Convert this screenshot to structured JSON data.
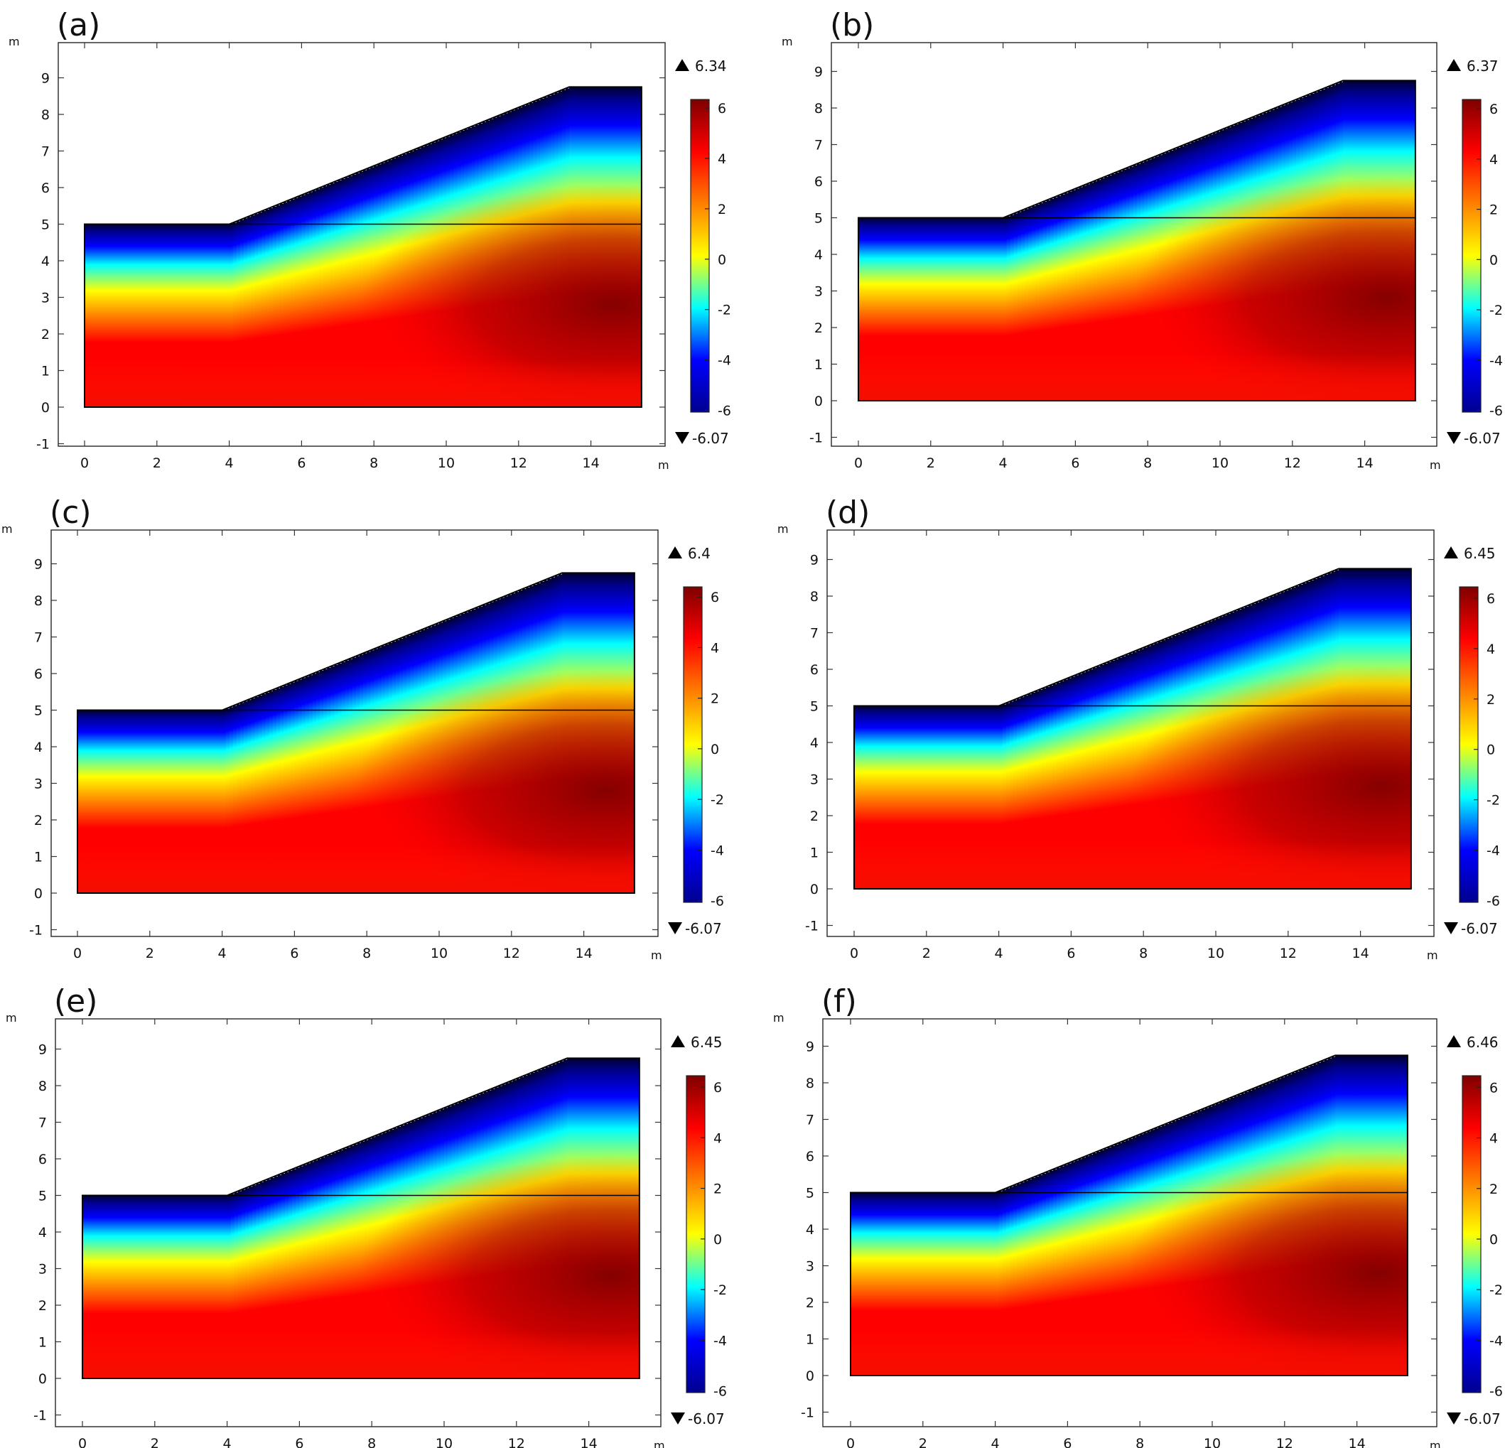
{
  "figure": {
    "panel_labels": [
      "(a)",
      "(b)",
      "(c)",
      "(d)",
      "(e)",
      "(f)"
    ]
  },
  "chart_data": [
    {
      "panel": "(a)",
      "type": "heatmap",
      "xlabel": "m",
      "ylabel": "m",
      "xlim": [
        -0.4,
        16
      ],
      "ylim": [
        -1.1,
        9.9
      ],
      "xticks": [
        0,
        2,
        4,
        6,
        8,
        10,
        12,
        14
      ],
      "yticks": [
        -1,
        0,
        1,
        2,
        3,
        4,
        5,
        6,
        7,
        8,
        9
      ],
      "geometry_outline_m": [
        [
          0,
          0
        ],
        [
          0,
          5
        ],
        [
          4,
          5
        ],
        [
          13.4,
          8.75
        ],
        [
          15.4,
          8.75
        ],
        [
          15.4,
          0
        ]
      ],
      "interface_line_y_m": 5,
      "colorbar": {
        "ticks": [
          6,
          4,
          2,
          0,
          -2,
          -4,
          -6
        ],
        "max_label": "6.34",
        "min_label": "-6.07",
        "max": 6.34,
        "min": -6.07
      },
      "colormap": [
        "#00008f",
        "#0000ff",
        "#00ffff",
        "#ffff00",
        "#ff7f00",
        "#ff0000",
        "#7f0000"
      ]
    },
    {
      "panel": "(b)",
      "type": "heatmap",
      "xlabel": "m",
      "ylabel": "m",
      "xlim": [
        -0.4,
        16
      ],
      "ylim": [
        -1.1,
        9.9
      ],
      "xticks": [
        0,
        2,
        4,
        6,
        8,
        10,
        12,
        14
      ],
      "yticks": [
        -1,
        0,
        1,
        2,
        3,
        4,
        5,
        6,
        7,
        8,
        9
      ],
      "geometry_outline_m": [
        [
          0,
          0
        ],
        [
          0,
          5
        ],
        [
          4,
          5
        ],
        [
          13.4,
          8.75
        ],
        [
          15.4,
          8.75
        ],
        [
          15.4,
          0
        ]
      ],
      "interface_line_y_m": 5,
      "colorbar": {
        "ticks": [
          6,
          4,
          2,
          0,
          -2,
          -4,
          -6
        ],
        "max_label": "6.37",
        "min_label": "-6.07",
        "max": 6.37,
        "min": -6.07
      },
      "colormap": [
        "#00008f",
        "#0000ff",
        "#00ffff",
        "#ffff00",
        "#ff7f00",
        "#ff0000",
        "#7f0000"
      ]
    },
    {
      "panel": "(c)",
      "type": "heatmap",
      "xlabel": "m",
      "ylabel": "m",
      "xlim": [
        -0.4,
        16
      ],
      "ylim": [
        -1.1,
        9.9
      ],
      "xticks": [
        0,
        2,
        4,
        6,
        8,
        10,
        12,
        14
      ],
      "yticks": [
        -1,
        0,
        1,
        2,
        3,
        4,
        5,
        6,
        7,
        8,
        9
      ],
      "geometry_outline_m": [
        [
          0,
          0
        ],
        [
          0,
          5
        ],
        [
          4,
          5
        ],
        [
          13.4,
          8.75
        ],
        [
          15.4,
          8.75
        ],
        [
          15.4,
          0
        ]
      ],
      "interface_line_y_m": 5,
      "colorbar": {
        "ticks": [
          6,
          4,
          2,
          0,
          -2,
          -4,
          -6
        ],
        "max_label": "6.4",
        "min_label": "-6.07",
        "max": 6.4,
        "min": -6.07
      },
      "colormap": [
        "#00008f",
        "#0000ff",
        "#00ffff",
        "#ffff00",
        "#ff7f00",
        "#ff0000",
        "#7f0000"
      ]
    },
    {
      "panel": "(d)",
      "type": "heatmap",
      "xlabel": "m",
      "ylabel": "m",
      "xlim": [
        -0.4,
        16
      ],
      "ylim": [
        -1.1,
        9.9
      ],
      "xticks": [
        0,
        2,
        4,
        6,
        8,
        10,
        12,
        14
      ],
      "yticks": [
        -1,
        0,
        1,
        2,
        3,
        4,
        5,
        6,
        7,
        8,
        9
      ],
      "geometry_outline_m": [
        [
          0,
          0
        ],
        [
          0,
          5
        ],
        [
          4,
          5
        ],
        [
          13.4,
          8.75
        ],
        [
          15.4,
          8.75
        ],
        [
          15.4,
          0
        ]
      ],
      "interface_line_y_m": 5,
      "colorbar": {
        "ticks": [
          6,
          4,
          2,
          0,
          -2,
          -4,
          -6
        ],
        "max_label": "6.45",
        "min_label": "-6.07",
        "max": 6.45,
        "min": -6.07
      },
      "colormap": [
        "#00008f",
        "#0000ff",
        "#00ffff",
        "#ffff00",
        "#ff7f00",
        "#ff0000",
        "#7f0000"
      ]
    },
    {
      "panel": "(e)",
      "type": "heatmap",
      "xlabel": "m",
      "ylabel": "m",
      "xlim": [
        -0.4,
        16
      ],
      "ylim": [
        -1.1,
        9.9
      ],
      "xticks": [
        0,
        2,
        4,
        6,
        8,
        10,
        12,
        14
      ],
      "yticks": [
        -1,
        0,
        1,
        2,
        3,
        4,
        5,
        6,
        7,
        8,
        9
      ],
      "geometry_outline_m": [
        [
          0,
          0
        ],
        [
          0,
          5
        ],
        [
          4,
          5
        ],
        [
          13.4,
          8.75
        ],
        [
          15.4,
          8.75
        ],
        [
          15.4,
          0
        ]
      ],
      "interface_line_y_m": 5,
      "colorbar": {
        "ticks": [
          6,
          4,
          2,
          0,
          -2,
          -4,
          -6
        ],
        "max_label": "6.45",
        "min_label": "-6.07",
        "max": 6.45,
        "min": -6.07
      },
      "colormap": [
        "#00008f",
        "#0000ff",
        "#00ffff",
        "#ffff00",
        "#ff7f00",
        "#ff0000",
        "#7f0000"
      ]
    },
    {
      "panel": "(f)",
      "type": "heatmap",
      "xlabel": "m",
      "ylabel": "m",
      "xlim": [
        -0.4,
        16
      ],
      "ylim": [
        -1.1,
        9.9
      ],
      "xticks": [
        0,
        2,
        4,
        6,
        8,
        10,
        12,
        14
      ],
      "yticks": [
        -1,
        0,
        1,
        2,
        3,
        4,
        5,
        6,
        7,
        8,
        9
      ],
      "geometry_outline_m": [
        [
          0,
          0
        ],
        [
          0,
          5
        ],
        [
          4,
          5
        ],
        [
          13.4,
          8.75
        ],
        [
          15.4,
          8.75
        ],
        [
          15.4,
          0
        ]
      ],
      "interface_line_y_m": 5,
      "colorbar": {
        "ticks": [
          6,
          4,
          2,
          0,
          -2,
          -4,
          -6
        ],
        "max_label": "6.46",
        "min_label": "-6.07",
        "max": 6.46,
        "min": -6.07
      },
      "colormap": [
        "#00008f",
        "#0000ff",
        "#00ffff",
        "#ffff00",
        "#ff7f00",
        "#ff0000",
        "#7f0000"
      ]
    }
  ]
}
